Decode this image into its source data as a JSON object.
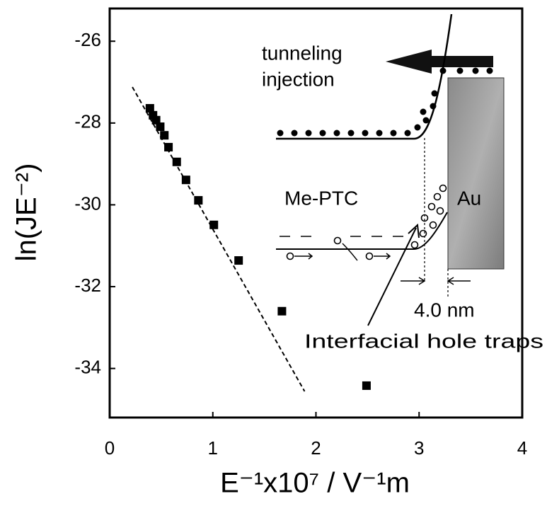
{
  "chart_data": {
    "type": "scatter",
    "x_label": "E⁻¹x10⁷ / V⁻¹m",
    "y_label": "ln(JE⁻²)",
    "x": [
      0.39,
      0.42,
      0.45,
      0.49,
      0.53,
      0.57,
      0.65,
      0.74,
      0.86,
      1.01,
      1.25,
      1.67,
      2.49
    ],
    "values": [
      -27.64,
      -27.81,
      -27.93,
      -28.09,
      -28.3,
      -28.59,
      -28.95,
      -29.39,
      -29.89,
      -30.49,
      -31.36,
      -32.6,
      -34.42
    ],
    "color": "#000000",
    "fit": {
      "x": [
        0.22,
        1.89
      ],
      "values": [
        -27.12,
        -34.56
      ]
    },
    "xlim": [
      0,
      4
    ],
    "xticks": [
      0,
      1,
      2,
      3,
      4
    ],
    "ylim": [
      -35.2,
      -25.2
    ],
    "yticks": [
      -34,
      -32,
      -30,
      -28,
      -26
    ],
    "annotations": {
      "injection_1": "tunneling",
      "injection_2": "injection",
      "material": "Me-PTC",
      "electrode": "Au",
      "distance": "4.0 nm",
      "traps": "Interfacial hole traps"
    }
  }
}
